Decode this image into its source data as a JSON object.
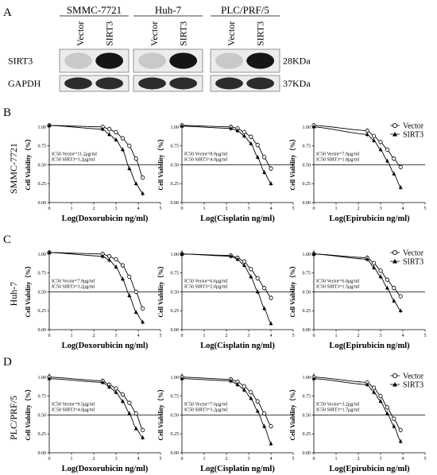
{
  "panel_letters": [
    "A",
    "B",
    "C",
    "D"
  ],
  "western_blot": {
    "cell_lines": [
      {
        "name": "SMMC-7721",
        "lanes": [
          "Vector",
          "SIRT3"
        ]
      },
      {
        "name": "Huh-7",
        "lanes": [
          "Vector",
          "SIRT3"
        ]
      },
      {
        "name": "PLC/PRF/5",
        "lanes": [
          "Vector",
          "SIRT3"
        ]
      }
    ],
    "proteins": [
      {
        "name": "SIRT3",
        "kda": "28KDa",
        "bands": [
          0.15,
          0.95
        ]
      },
      {
        "name": "GAPDH",
        "kda": "37KDa",
        "bands": [
          0.85,
          0.85
        ]
      }
    ]
  },
  "legend": {
    "vector": "Vector",
    "sirt3": "SIRT3"
  },
  "common_axes": {
    "ylabel": "Cell Viability（%）",
    "xlim": [
      0,
      5
    ],
    "ylim": [
      0,
      1.05
    ],
    "xticks": [
      "0",
      "1",
      "2",
      "3",
      "4",
      "5"
    ],
    "yticks": [
      "0.00",
      "0.25",
      "0.50",
      "0.75",
      "1.00"
    ],
    "reference_line_y": 0.5
  },
  "chart_data": [
    {
      "type": "line",
      "row": "B",
      "cell_line": "SMMC-7721",
      "xlabel": "Log(Doxorubicin ng/ml)",
      "ic50_labels": [
        "IC50 Vector=11.2μg/ml",
        "IC50 SIRT3=3.2μg/ml"
      ],
      "series": [
        {
          "name": "Vector",
          "x": [
            0,
            2.4,
            2.7,
            3.0,
            3.3,
            3.6,
            3.9,
            4.2
          ],
          "y": [
            1.02,
            1.0,
            0.97,
            0.93,
            0.85,
            0.75,
            0.58,
            0.33
          ]
        },
        {
          "name": "SIRT3",
          "x": [
            0,
            2.4,
            2.7,
            3.0,
            3.3,
            3.6,
            3.9,
            4.2
          ],
          "y": [
            1.02,
            0.97,
            0.9,
            0.83,
            0.7,
            0.45,
            0.25,
            0.12
          ]
        }
      ]
    },
    {
      "type": "line",
      "row": "B",
      "cell_line": "SMMC-7721",
      "xlabel": "Log(Cisplatin ng/ml)",
      "ic50_labels": [
        "IC50 Vector=8.9μg/ml",
        "IC50 SIRT3=4.0μg/ml"
      ],
      "series": [
        {
          "name": "Vector",
          "x": [
            0,
            2.2,
            2.5,
            2.8,
            3.1,
            3.4,
            3.7,
            4.0
          ],
          "y": [
            1.02,
            1.0,
            0.98,
            0.93,
            0.87,
            0.76,
            0.6,
            0.45
          ]
        },
        {
          "name": "SIRT3",
          "x": [
            0,
            2.2,
            2.5,
            2.8,
            3.1,
            3.4,
            3.7,
            4.0
          ],
          "y": [
            1.01,
            0.98,
            0.95,
            0.88,
            0.78,
            0.6,
            0.4,
            0.25
          ]
        }
      ]
    },
    {
      "type": "line",
      "row": "B",
      "cell_line": "SMMC-7721",
      "xlabel": "Log(Epirubicin ng/ml)",
      "ic50_labels": [
        "IC50 Vector=7.9μg/ml",
        "IC50 SIRT3=1.8μg/ml"
      ],
      "series": [
        {
          "name": "Vector",
          "x": [
            0,
            2.4,
            2.7,
            3.0,
            3.3,
            3.6,
            3.9
          ],
          "y": [
            1.02,
            0.95,
            0.88,
            0.8,
            0.7,
            0.58,
            0.47
          ]
        },
        {
          "name": "SIRT3",
          "x": [
            0,
            2.4,
            2.7,
            3.0,
            3.3,
            3.6,
            3.9
          ],
          "y": [
            1.0,
            0.9,
            0.82,
            0.7,
            0.55,
            0.38,
            0.2
          ]
        }
      ]
    },
    {
      "type": "line",
      "row": "C",
      "cell_line": "Huh-7",
      "xlabel": "Log(Doxorubicin ng/ml)",
      "ic50_labels": [
        "IC50 Vector=7.9μg/ml",
        "IC50 SIRT3=3.2μg/ml"
      ],
      "series": [
        {
          "name": "Vector",
          "x": [
            0,
            2.4,
            2.7,
            3.0,
            3.3,
            3.6,
            3.9,
            4.2
          ],
          "y": [
            1.02,
            1.0,
            0.97,
            0.93,
            0.85,
            0.7,
            0.5,
            0.28
          ]
        },
        {
          "name": "SIRT3",
          "x": [
            0,
            2.4,
            2.7,
            3.0,
            3.3,
            3.6,
            3.9,
            4.2
          ],
          "y": [
            1.02,
            0.97,
            0.92,
            0.83,
            0.67,
            0.45,
            0.23,
            0.1
          ]
        }
      ]
    },
    {
      "type": "line",
      "row": "C",
      "cell_line": "Huh-7",
      "xlabel": "Log(Cisplatin ng/ml)",
      "ic50_labels": [
        "IC50 Vector=6.6μg/ml",
        "IC50 SIRT3=2.0μg/ml"
      ],
      "series": [
        {
          "name": "Vector",
          "x": [
            0,
            2.2,
            2.5,
            2.8,
            3.1,
            3.4,
            3.7,
            4.0
          ],
          "y": [
            1.0,
            0.98,
            0.95,
            0.9,
            0.8,
            0.68,
            0.55,
            0.42
          ]
        },
        {
          "name": "SIRT3",
          "x": [
            0,
            2.2,
            2.5,
            2.8,
            3.1,
            3.4,
            3.7,
            4.0
          ],
          "y": [
            1.0,
            0.97,
            0.93,
            0.85,
            0.7,
            0.5,
            0.28,
            0.08
          ]
        }
      ]
    },
    {
      "type": "line",
      "row": "C",
      "cell_line": "Huh-7",
      "xlabel": "Log(Epirubicin ng/ml)",
      "ic50_labels": [
        "IC50 Vector=6.0μg/ml",
        "IC50 SIRT3=1.5μg/ml"
      ],
      "series": [
        {
          "name": "Vector",
          "x": [
            0,
            2.4,
            2.7,
            3.0,
            3.3,
            3.6,
            3.9
          ],
          "y": [
            1.0,
            0.95,
            0.88,
            0.78,
            0.66,
            0.55,
            0.44
          ]
        },
        {
          "name": "SIRT3",
          "x": [
            0,
            2.4,
            2.7,
            3.0,
            3.3,
            3.6,
            3.9
          ],
          "y": [
            1.0,
            0.93,
            0.82,
            0.7,
            0.55,
            0.38,
            0.25
          ]
        }
      ]
    },
    {
      "type": "line",
      "row": "D",
      "cell_line": "PLC/PRF/5",
      "xlabel": "Log(Doxorubicin ng/ml)",
      "ic50_labels": [
        "IC50 Vector=9.5μg/ml",
        "IC50 SIRT3=4.0μg/ml"
      ],
      "series": [
        {
          "name": "Vector",
          "x": [
            0,
            2.4,
            2.7,
            3.0,
            3.3,
            3.6,
            3.9,
            4.2
          ],
          "y": [
            1.0,
            0.95,
            0.9,
            0.85,
            0.77,
            0.66,
            0.52,
            0.3
          ]
        },
        {
          "name": "SIRT3",
          "x": [
            0,
            2.4,
            2.7,
            3.0,
            3.3,
            3.6,
            3.9,
            4.2
          ],
          "y": [
            0.98,
            0.93,
            0.87,
            0.8,
            0.68,
            0.52,
            0.32,
            0.2
          ]
        }
      ]
    },
    {
      "type": "line",
      "row": "D",
      "cell_line": "PLC/PRF/5",
      "xlabel": "Log(Cisplatin ng/ml)",
      "ic50_labels": [
        "IC50 Vector=7.6μg/ml",
        "IC50 SIRT3=3.2μg/ml"
      ],
      "series": [
        {
          "name": "Vector",
          "x": [
            0,
            2.2,
            2.5,
            2.8,
            3.1,
            3.4,
            3.7,
            4.0
          ],
          "y": [
            1.0,
            0.97,
            0.94,
            0.88,
            0.8,
            0.68,
            0.52,
            0.35
          ]
        },
        {
          "name": "SIRT3",
          "x": [
            0,
            2.2,
            2.5,
            2.8,
            3.1,
            3.4,
            3.7,
            4.0
          ],
          "y": [
            0.98,
            0.95,
            0.9,
            0.83,
            0.72,
            0.55,
            0.35,
            0.12
          ]
        }
      ]
    },
    {
      "type": "line",
      "row": "D",
      "cell_line": "PLC/PRF/5",
      "xlabel": "Log(Epirubicin ng/ml)",
      "ic50_labels": [
        "IC50 Vector=3.2μg/ml",
        "IC50 SIRT3=1.7μg/ml"
      ],
      "series": [
        {
          "name": "Vector",
          "x": [
            0,
            2.4,
            2.7,
            3.0,
            3.3,
            3.6,
            3.9
          ],
          "y": [
            1.0,
            0.93,
            0.86,
            0.75,
            0.6,
            0.45,
            0.3
          ]
        },
        {
          "name": "SIRT3",
          "x": [
            0,
            2.4,
            2.7,
            3.0,
            3.3,
            3.6,
            3.9
          ],
          "y": [
            0.98,
            0.9,
            0.8,
            0.68,
            0.52,
            0.35,
            0.15
          ]
        }
      ]
    }
  ]
}
